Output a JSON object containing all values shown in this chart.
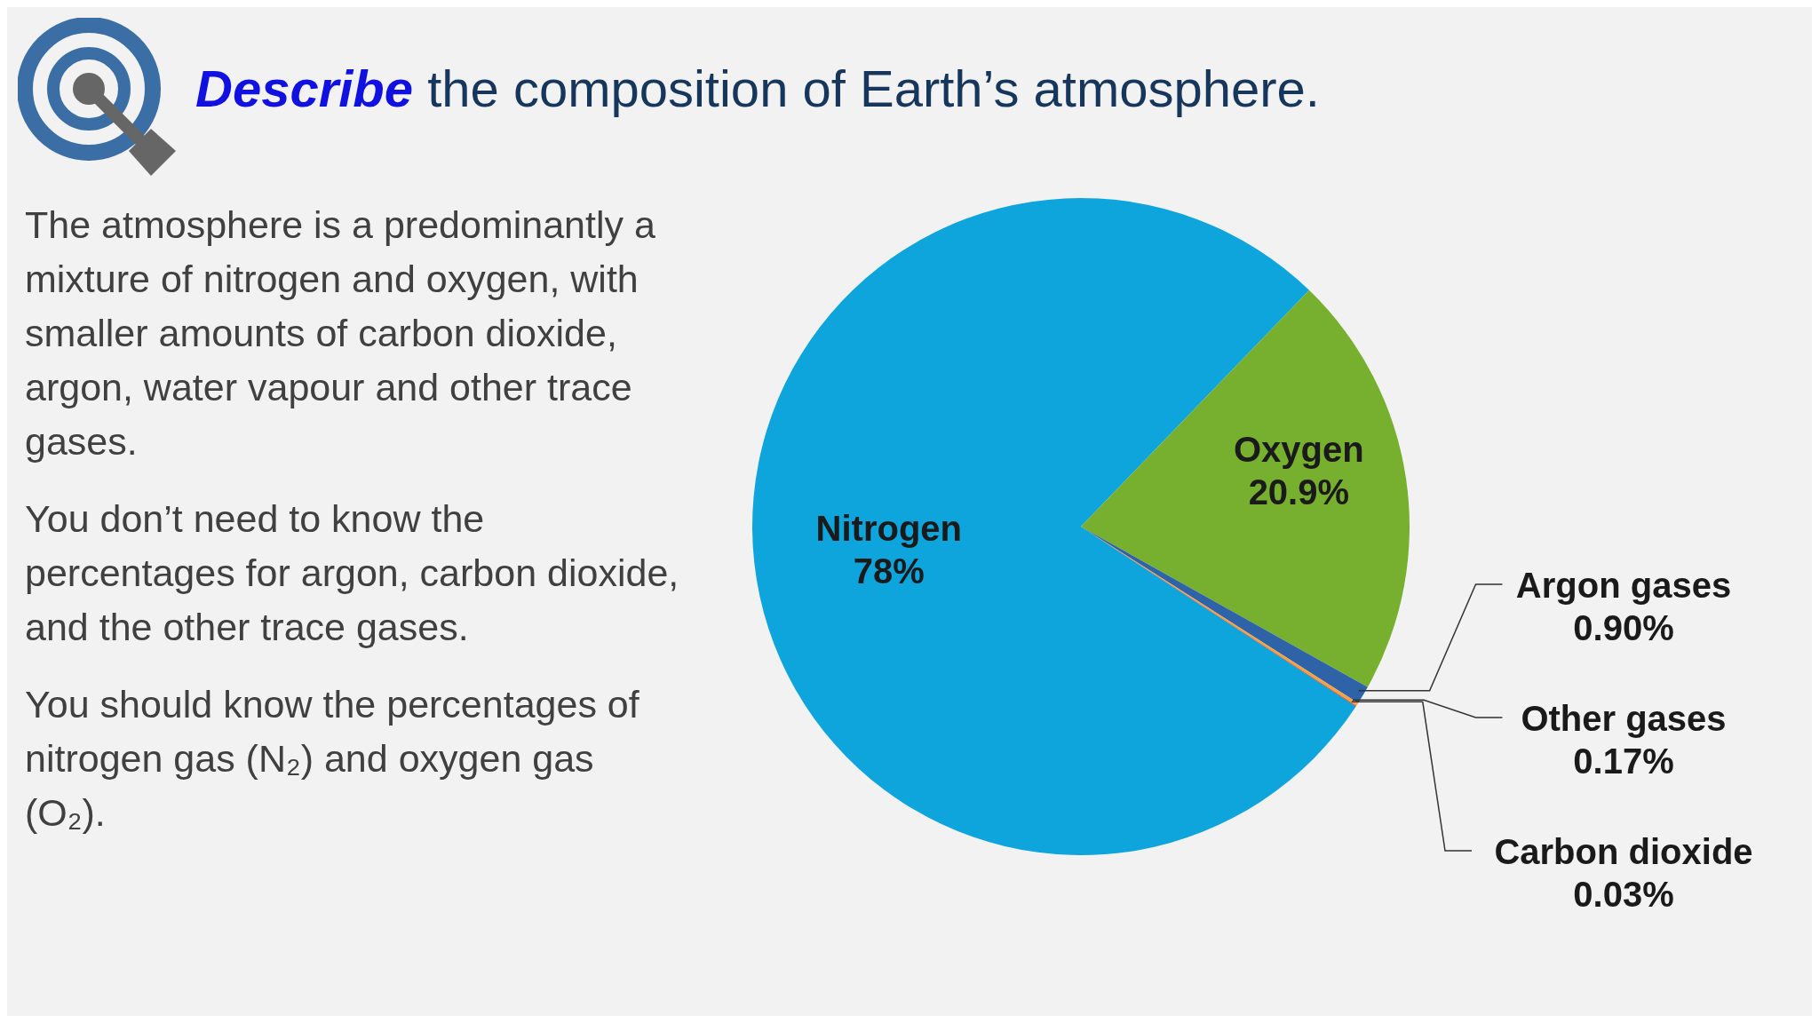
{
  "chart_data": {
    "type": "pie",
    "title": "Describe the composition of Earth’s atmosphere.",
    "categories": [
      "Nitrogen",
      "Oxygen",
      "Argon gases",
      "Other gases",
      "Carbon dioxide"
    ],
    "values": [
      78,
      20.9,
      0.9,
      0.17,
      0.03
    ],
    "value_labels": [
      "78%",
      "20.9%",
      "0.90%",
      "0.17%",
      "0.03%"
    ],
    "colors": [
      "#0ea5dc",
      "#77b02e",
      "#2f63a8",
      "#f0a445",
      "#c0302e"
    ],
    "annotations": [
      "The atmosphere is a predominantly a mixture of nitrogen and oxygen, with smaller amounts of carbon dioxide, argon, water vapour and other trace gases.",
      "You don’t need to know the percentages for argon, carbon dioxide, and the other trace gases.",
      "You should know the percentages of nitrogen gas (N₂) and oxygen gas (O₂)."
    ]
  }
}
